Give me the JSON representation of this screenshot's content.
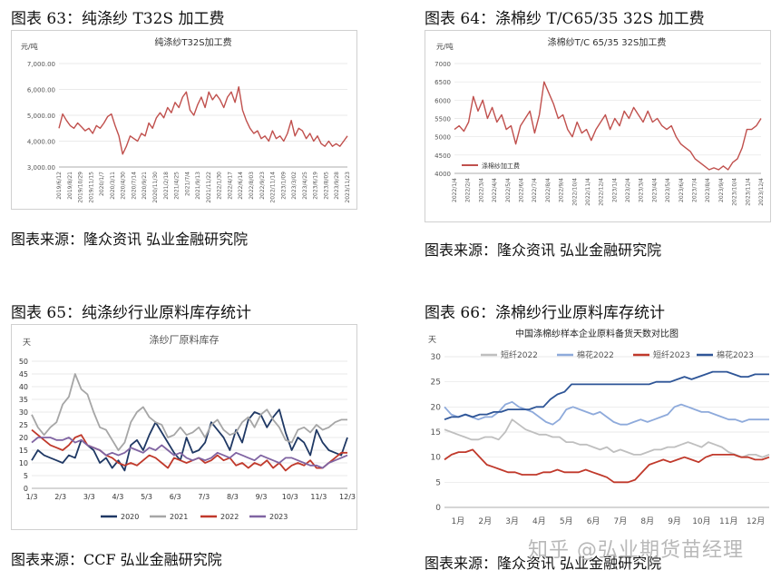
{
  "captions": {
    "c63": "图表  63：纯涤纱 T32S 加工费",
    "c64": "图表  64：涤棉纱 T/C65/35 32S 加工费",
    "c65": "图表  65：纯涤纱行业原料库存统计",
    "c66": "图表  66：涤棉纱行业原料库存统计"
  },
  "sources": {
    "s63": "图表来源：隆众资讯    弘业金融研究院",
    "s64": "图表来源：隆众资讯    弘业金融研究院",
    "s65": "图表来源：CCF    弘业金融研究院",
    "s66": "图表来源：隆众资讯    弘业金融研究院"
  },
  "watermark": "知乎 @弘业期货苗经理",
  "colors": {
    "red": "#c0504d",
    "navy": "#1f3864",
    "gray": "#a6a6a6",
    "red2": "#c0392b",
    "purple": "#8064a2",
    "lightblue": "#8eaadb",
    "darkblue": "#2e5597",
    "lightgray": "#bfbfbf"
  },
  "chart_data": [
    {
      "id": "c63",
      "type": "line",
      "title": "纯涤纱T32S加工费",
      "ylabel": "元/吨",
      "ylim": [
        3000,
        7000
      ],
      "yticks": [
        "3,000.00",
        "4,000.00",
        "5,000.00",
        "6,000.00",
        "7,000.00"
      ],
      "ytick_values": [
        3000,
        4000,
        5000,
        6000,
        7000
      ],
      "xticks": [
        "2019/6/12",
        "2019/8/21",
        "2019/10/29",
        "2019/11/15",
        "2020/1/7",
        "2020/3/11",
        "2020/4/30",
        "2020/7/14",
        "2020/9/21",
        "2020/11/30",
        "2021/2/18",
        "2021/4/25",
        "2021/7/4",
        "2021/9/13",
        "2021/11/22",
        "2022/1/30",
        "2022/4/17",
        "2022/6/14",
        "2022/8/03",
        "2022/9/23",
        "2022/11/14",
        "2023/1/09",
        "2023/3/02",
        "2023/4/25",
        "2023/6/19",
        "2023/8/05",
        "2023/9/28",
        "2023/11/23"
      ],
      "series": [
        {
          "name": "纯涤纱T32S加工费",
          "values": [
            4500,
            5050,
            4800,
            4600,
            4500,
            4700,
            4550,
            4400,
            4500,
            4300,
            4600,
            4500,
            4700,
            4950,
            5050,
            4600,
            4200,
            3500,
            3800,
            4200,
            4100,
            4000,
            4300,
            4200,
            4700,
            4500,
            4900,
            5100,
            4900,
            5300,
            5100,
            5500,
            5300,
            5700,
            5900,
            5200,
            5000,
            5400,
            5700,
            5300,
            5900,
            5600,
            5800,
            5600,
            5300,
            5700,
            5900,
            5500,
            6100,
            5200,
            4800,
            4500,
            4300,
            4400,
            4100,
            4200,
            4000,
            4400,
            4100,
            4200,
            4000,
            4300,
            4800,
            4200,
            4500,
            4400,
            4100,
            4300,
            4000,
            4200,
            3900,
            3800,
            4000,
            3800,
            3900,
            3800,
            4000,
            4200
          ]
        }
      ]
    },
    {
      "id": "c64",
      "type": "line",
      "title": "涤棉纱T/C 65/35 32S加工费",
      "ylabel": "元/吨",
      "ylim": [
        4000,
        7000
      ],
      "yticks": [
        "4000",
        "4500",
        "5000",
        "5500",
        "6000",
        "6500",
        "7000"
      ],
      "ytick_values": [
        4000,
        4500,
        5000,
        5500,
        6000,
        6500,
        7000
      ],
      "legend": "涤棉纱加工费",
      "xticks": [
        "2022/1/4",
        "2022/2/4",
        "2022/3/4",
        "2022/4/4",
        "2022/5/4",
        "2022/6/4",
        "2022/7/4",
        "2022/8/4",
        "2022/9/4",
        "2022/10/4",
        "2022/11/4",
        "2022/12/4",
        "2023/1/4",
        "2023/2/4",
        "2023/3/4",
        "2023/4/4",
        "2023/5/4",
        "2023/6/4",
        "2023/7/4",
        "2023/8/4",
        "2023/9/4",
        "2023/10/4",
        "2023/11/4",
        "2023/12/4"
      ],
      "series": [
        {
          "name": "涤棉纱加工费",
          "values": [
            5200,
            5300,
            5150,
            5400,
            6100,
            5700,
            6000,
            5500,
            5800,
            5400,
            5600,
            5200,
            5300,
            4800,
            5300,
            5500,
            5700,
            5100,
            5600,
            6500,
            6200,
            5900,
            5500,
            5600,
            5200,
            5000,
            5400,
            5100,
            5200,
            4900,
            5200,
            5400,
            5600,
            5200,
            5500,
            5300,
            5700,
            5500,
            5800,
            5600,
            5400,
            5700,
            5400,
            5500,
            5300,
            5200,
            5300,
            5000,
            4800,
            4700,
            4600,
            4400,
            4300,
            4200,
            4100,
            4150,
            4100,
            4200,
            4100,
            4300,
            4400,
            4700,
            5200,
            5200,
            5300,
            5500
          ]
        }
      ]
    },
    {
      "id": "c65",
      "type": "line",
      "title": "涤纱厂原料库存",
      "ylabel": "天",
      "ylim": [
        0,
        50
      ],
      "yticks": [
        "0",
        "5",
        "10",
        "15",
        "20",
        "25",
        "30",
        "35",
        "40",
        "45",
        "50"
      ],
      "ytick_values": [
        0,
        5,
        10,
        15,
        20,
        25,
        30,
        35,
        40,
        45,
        50
      ],
      "xticks": [
        "1/3",
        "2/3",
        "3/3",
        "4/3",
        "5/3",
        "6/3",
        "7/3",
        "8/3",
        "9/3",
        "10/3",
        "11/3",
        "12/3"
      ],
      "series": [
        {
          "name": "2020",
          "color": "#1f3864",
          "values": [
            11,
            15,
            13,
            12,
            11,
            10,
            13,
            12,
            19,
            17,
            15,
            10,
            12,
            8,
            11,
            7,
            17,
            19,
            15,
            21,
            26,
            22,
            18,
            14,
            11,
            20,
            14,
            15,
            18,
            26,
            23,
            20,
            15,
            23,
            18,
            27,
            30,
            29,
            24,
            28,
            31,
            22,
            15,
            20,
            18,
            13,
            23,
            18,
            15,
            14,
            13,
            20
          ]
        },
        {
          "name": "2021",
          "color": "#a6a6a6",
          "values": [
            29,
            24,
            21,
            24,
            26,
            33,
            36,
            45,
            39,
            37,
            30,
            24,
            23,
            19,
            15,
            18,
            26,
            30,
            32,
            28,
            26,
            25,
            20,
            21,
            24,
            21,
            22,
            24,
            20,
            25,
            27,
            23,
            21,
            22,
            26,
            28,
            24,
            29,
            31,
            27,
            24,
            19,
            18,
            23,
            24,
            22,
            25,
            23,
            24,
            26,
            27,
            27
          ]
        },
        {
          "name": "2022",
          "color": "#c0392b",
          "values": [
            23,
            21,
            19,
            17,
            16,
            15,
            17,
            20,
            21,
            17,
            16,
            15,
            13,
            12,
            10,
            9,
            10,
            9,
            11,
            13,
            12,
            10,
            8,
            12,
            11,
            10,
            11,
            12,
            10,
            11,
            13,
            11,
            12,
            9,
            10,
            8,
            10,
            9,
            11,
            8,
            10,
            7,
            9,
            10,
            9,
            11,
            8,
            8,
            10,
            12,
            14,
            14
          ]
        },
        {
          "name": "2023",
          "color": "#8064a2",
          "values": [
            18,
            20,
            20,
            20,
            19,
            19,
            20,
            18,
            19,
            17,
            16,
            15,
            13,
            14,
            13,
            14,
            16,
            15,
            14,
            16,
            15,
            17,
            15,
            13,
            14,
            12,
            11,
            12,
            11,
            12,
            14,
            13,
            12,
            14,
            13,
            12,
            11,
            13,
            12,
            11,
            10,
            12,
            12,
            11,
            10,
            9,
            9,
            8,
            10,
            11,
            12,
            13
          ]
        }
      ]
    },
    {
      "id": "c66",
      "type": "line",
      "title": "中国涤棉纱样本企业原料备货天数对比图",
      "ylabel": "天",
      "ylim": [
        0,
        30
      ],
      "yticks": [
        "0",
        "5",
        "10",
        "15",
        "20",
        "25",
        "30"
      ],
      "ytick_values": [
        0,
        5,
        10,
        15,
        20,
        25,
        30
      ],
      "xticks": [
        "1月",
        "2月",
        "3月",
        "4月",
        "5月",
        "6月",
        "7月",
        "8月",
        "9月",
        "10月",
        "11月",
        "12月"
      ],
      "series": [
        {
          "name": "短纤2022",
          "color": "#bfbfbf",
          "values": [
            15.5,
            15,
            14.5,
            14,
            13.5,
            13.5,
            14,
            14,
            13.5,
            15,
            17.5,
            16.5,
            15.5,
            15,
            14.5,
            14.5,
            14,
            14,
            13,
            13,
            12.5,
            12.5,
            12,
            11.5,
            12,
            11,
            11.5,
            11,
            10.5,
            10.5,
            11,
            11.5,
            11.5,
            12,
            12,
            12.5,
            13,
            12.5,
            12,
            13,
            12.5,
            12,
            11,
            10.5,
            10,
            10.5,
            10.5,
            10,
            10.5
          ]
        },
        {
          "name": "棉花2022",
          "color": "#8eaadb",
          "values": [
            20,
            18.5,
            18,
            18.5,
            18,
            17.5,
            18,
            18,
            19,
            20.5,
            21,
            20,
            19.5,
            19,
            18,
            17,
            16.5,
            17.5,
            19.5,
            20,
            19.5,
            19,
            18.5,
            19,
            18,
            17,
            16.5,
            16.5,
            17,
            17.5,
            17,
            17.5,
            18,
            18.5,
            20,
            20.5,
            20,
            19.5,
            19,
            19,
            18.5,
            18,
            17.5,
            17.5,
            17,
            17.5,
            17.5,
            17.5,
            17.5
          ]
        },
        {
          "name": "短纤2023",
          "color": "#c0392b",
          "values": [
            9.5,
            10.5,
            11,
            11,
            11.5,
            10,
            8.5,
            8,
            7.5,
            7,
            7,
            6.5,
            6.5,
            6.5,
            7,
            7,
            7.5,
            7,
            7,
            7,
            7.5,
            7,
            6.5,
            6,
            5,
            5,
            5,
            5.5,
            7,
            8.5,
            9,
            9.5,
            9,
            9.5,
            10,
            9.5,
            9,
            10,
            10.5,
            10.5,
            10.5,
            10.5,
            10,
            10,
            9.5,
            9.5,
            10
          ]
        },
        {
          "name": "棉花2023",
          "color": "#2e5597",
          "values": [
            17.5,
            18,
            18,
            18.5,
            18,
            18.5,
            18.5,
            19,
            19,
            19.5,
            19.5,
            19.5,
            19.5,
            20,
            20,
            21.5,
            22.5,
            23,
            24.5,
            24.5,
            24.5,
            24.5,
            24.5,
            24.5,
            24.5,
            24.5,
            24.5,
            24.5,
            24.5,
            24.5,
            25,
            25,
            25,
            25.5,
            26,
            25.5,
            26,
            26.5,
            27,
            27,
            27,
            26.5,
            26,
            26,
            26.5,
            26.5,
            26.5
          ]
        }
      ]
    }
  ]
}
